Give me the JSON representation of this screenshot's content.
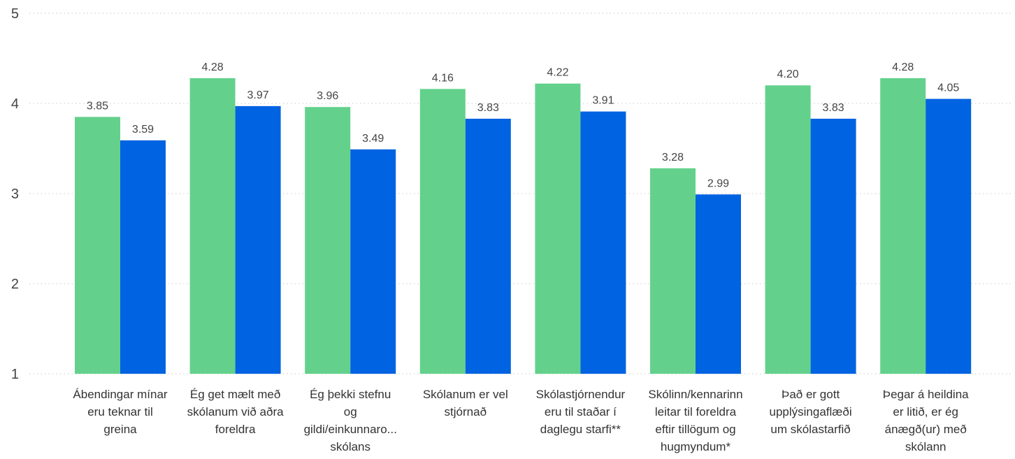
{
  "chart_data": {
    "type": "bar",
    "categories": [
      [
        "Ábendingar mínar",
        "eru teknar til",
        "greina"
      ],
      [
        "Ég get mælt með",
        "skólanum við aðra",
        "foreldra"
      ],
      [
        "Ég þekki stefnu",
        "og",
        "gildi/einkunnaro...",
        "skólans"
      ],
      [
        "Skólanum er vel",
        "stjórnað"
      ],
      [
        "Skólastjórnendur",
        "eru til staðar í",
        "daglegu starfi**"
      ],
      [
        "Skólinn/kennarinn",
        "leitar til foreldra",
        "eftir tillögum og",
        "hugmyndum*"
      ],
      [
        "Það er gott",
        "upplýsingaflæði",
        "um skólastarfið"
      ],
      [
        "Þegar á heildina",
        "er litið, er ég",
        "ánægð(ur) með",
        "skólann"
      ]
    ],
    "series": [
      {
        "color": "#63d18c",
        "values": [
          3.85,
          4.28,
          3.96,
          4.16,
          4.22,
          3.28,
          4.2,
          4.28
        ],
        "labels": [
          "3.85",
          "4.28",
          "3.96",
          "4.16",
          "4.22",
          "3.28",
          "4.20",
          "4.28"
        ]
      },
      {
        "color": "#0063e1",
        "values": [
          3.59,
          3.97,
          3.49,
          3.83,
          3.91,
          2.99,
          3.83,
          4.05
        ],
        "labels": [
          "3.59",
          "3.97",
          "3.49",
          "3.83",
          "3.91",
          "2.99",
          "3.83",
          "4.05"
        ]
      }
    ],
    "yticks": [
      "1",
      "2",
      "3",
      "4",
      "5"
    ],
    "ylim": [
      1,
      5
    ],
    "grid": true,
    "legend": "none",
    "title": "",
    "xlabel": "",
    "ylabel": ""
  }
}
